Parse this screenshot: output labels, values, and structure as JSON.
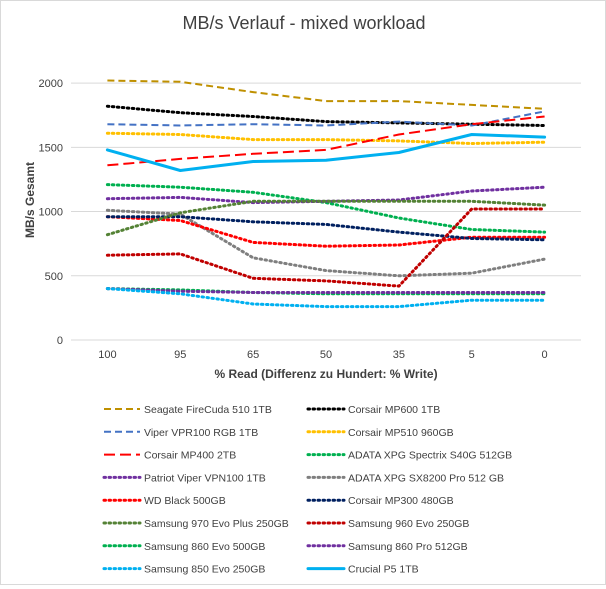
{
  "chart_data": {
    "type": "line",
    "title": "MB/s Verlauf - mixed workload",
    "xlabel": "% Read (Differenz zu Hundert: % Write)",
    "ylabel": "MB/s Gesamt",
    "categories": [
      "100",
      "95",
      "65",
      "50",
      "35",
      "5",
      "0"
    ],
    "yticks": [
      "0",
      "500",
      "1000",
      "1500",
      "2000"
    ],
    "ylim": [
      0,
      2250
    ],
    "grid": true,
    "legend_position": "bottom",
    "series": [
      {
        "name": "Seagate FireCuda 510 1TB",
        "color": "#bf9000",
        "dash": "dash",
        "values": [
          2020,
          2010,
          1930,
          1860,
          1860,
          1830,
          1800
        ]
      },
      {
        "name": "Corsair MP600 1TB",
        "color": "#000000",
        "dash": "dot",
        "values": [
          1820,
          1770,
          1740,
          1700,
          1690,
          1680,
          1670
        ]
      },
      {
        "name": "Viper VPR100 RGB 1TB",
        "color": "#4472c4",
        "dash": "dash",
        "values": [
          1680,
          1670,
          1680,
          1670,
          1700,
          1670,
          1780
        ]
      },
      {
        "name": "Corsair MP510 960GB",
        "color": "#ffc000",
        "dash": "dot",
        "values": [
          1610,
          1600,
          1560,
          1560,
          1550,
          1530,
          1540
        ]
      },
      {
        "name": "Corsair MP400 2TB",
        "color": "#ff0000",
        "dash": "longdash",
        "values": [
          1360,
          1410,
          1450,
          1480,
          1600,
          1680,
          1740
        ]
      },
      {
        "name": "ADATA XPG Spectrix S40G 512GB",
        "color": "#00b050",
        "dash": "dot",
        "values": [
          1210,
          1190,
          1150,
          1070,
          950,
          860,
          840
        ]
      },
      {
        "name": "Patriot Viper VPN100 1TB",
        "color": "#7030a0",
        "dash": "dot",
        "values": [
          1100,
          1110,
          1070,
          1080,
          1090,
          1160,
          1190
        ]
      },
      {
        "name": "ADATA XPG SX8200 Pro 512 GB",
        "color": "#7f7f7f",
        "dash": "dot",
        "values": [
          1010,
          980,
          640,
          540,
          500,
          520,
          630
        ]
      },
      {
        "name": "WD Black 500GB",
        "color": "#ff0000",
        "dash": "dot",
        "values": [
          960,
          930,
          760,
          730,
          740,
          800,
          800
        ]
      },
      {
        "name": "Corsair MP300 480GB",
        "color": "#002060",
        "dash": "dot",
        "values": [
          960,
          960,
          920,
          900,
          840,
          790,
          780
        ]
      },
      {
        "name": "Samsung 970 Evo Plus 250GB",
        "color": "#548235",
        "dash": "dot",
        "values": [
          820,
          990,
          1080,
          1080,
          1080,
          1080,
          1050
        ]
      },
      {
        "name": "Samsung 960 Evo 250GB",
        "color": "#c00000",
        "dash": "dot",
        "values": [
          660,
          670,
          480,
          460,
          420,
          1020,
          1020
        ]
      },
      {
        "name": "Samsung 860 Evo 500GB",
        "color": "#00b050",
        "dash": "dot",
        "values": [
          400,
          390,
          370,
          360,
          360,
          360,
          360
        ]
      },
      {
        "name": "Samsung 860 Pro 512GB",
        "color": "#7030a0",
        "dash": "dot",
        "values": [
          400,
          380,
          370,
          370,
          370,
          370,
          370
        ]
      },
      {
        "name": "Samsung 850 Evo 250GB",
        "color": "#00b0f0",
        "dash": "dot",
        "values": [
          400,
          360,
          280,
          260,
          260,
          310,
          310
        ]
      },
      {
        "name": "Crucial P5 1TB",
        "color": "#00b0f0",
        "dash": "solid",
        "values": [
          1480,
          1320,
          1390,
          1400,
          1460,
          1600,
          1580
        ]
      }
    ]
  }
}
